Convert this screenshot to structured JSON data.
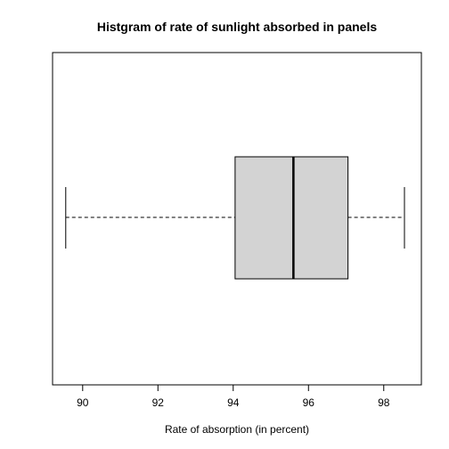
{
  "chart_data": {
    "type": "boxplot",
    "orientation": "horizontal",
    "title": "Histgram of rate of sunlight absorbed in panels",
    "xlabel": "Rate of absorption (in percent)",
    "ylabel": "",
    "xlim": [
      89.2,
      99.0
    ],
    "x_ticks": [
      90,
      92,
      94,
      96,
      98
    ],
    "grid": false,
    "box": {
      "min": 89.55,
      "q1": 94.05,
      "median": 95.6,
      "q3": 97.05,
      "max": 98.55
    },
    "colors": {
      "box_fill": "#d3d3d3",
      "stroke": "#000000"
    }
  }
}
